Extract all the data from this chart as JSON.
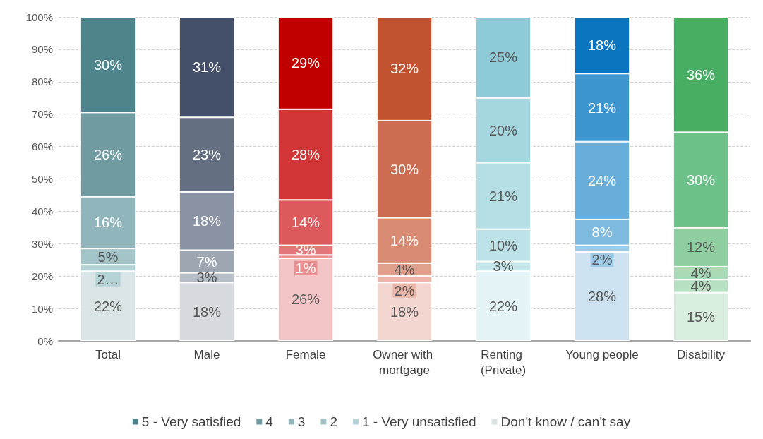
{
  "chart_data": {
    "type": "bar",
    "stacked": true,
    "categories": [
      "Total",
      "Male",
      "Female",
      "Owner with mortgage",
      "Renting (Private)",
      "Young people",
      "Disability"
    ],
    "series": [
      {
        "name": "Don't know / can't say",
        "color": "#d9e3e5",
        "colors": [
          "#d9e5e7",
          "#d7dbe0",
          "#f2c4c6",
          "#f3d6cf",
          "#e5f4f6",
          "#cce2f1",
          "#d9eede"
        ],
        "values": [
          21.5,
          18,
          25.5,
          18,
          21.5,
          27.5,
          14.9
        ],
        "value_labels": [
          "22%",
          "18%",
          "26%",
          "18%",
          "22%",
          "28%",
          "15%"
        ]
      },
      {
        "name": "1 - Very unsatisfied",
        "color": "#b5d2d6",
        "colors": [
          "#b5d2d6",
          "#b6bfc8",
          "#ea8f90",
          "#e9b6a8",
          "#c6e6ea",
          "#9ccbe8",
          "#b7dfc2"
        ],
        "values": [
          2,
          3,
          1,
          2,
          3,
          2,
          4
        ],
        "value_labels": [
          "2…",
          "3%",
          "1%",
          "2%",
          "3%",
          "2%",
          "4%"
        ]
      },
      {
        "name": "2",
        "color": "#a3c4c9",
        "colors": [
          "#a3c4c9",
          "#9ea6b1",
          "#e27779",
          "#dfa08d",
          "#bde3e8",
          "#7fbbe0",
          "#a9d9b7"
        ],
        "values": [
          5,
          7,
          3,
          4,
          10,
          8,
          4
        ],
        "value_labels": [
          "5%",
          "7%",
          "3%",
          "4%",
          "10%",
          "8%",
          "4%"
        ]
      },
      {
        "name": "3",
        "color": "#90b5ba",
        "colors": [
          "#90b5ba",
          "#8a93a3",
          "#dd5a5c",
          "#d88a72",
          "#b5dee5",
          "#67aedc",
          "#8ecea0"
        ],
        "values": [
          16,
          18,
          14,
          14,
          20.5,
          24,
          12
        ],
        "value_labels": [
          "16%",
          "18%",
          "14%",
          "14%",
          "21%",
          "24%",
          "12%"
        ]
      },
      {
        "name": "4",
        "color": "#6f9ba1",
        "colors": [
          "#6f9ba1",
          "#646f82",
          "#d13536",
          "#cc6d52",
          "#a5d7e0",
          "#3d96d0",
          "#6cc189"
        ],
        "values": [
          26,
          23,
          28,
          30,
          20,
          21,
          29.5
        ],
        "value_labels": [
          "26%",
          "23%",
          "28%",
          "30%",
          "20%",
          "21%",
          "30%"
        ]
      },
      {
        "name": "5 - Very satisfied",
        "color": "#4e848c",
        "colors": [
          "#4e848c",
          "#44506a",
          "#c00000",
          "#c0522f",
          "#8ecbd7",
          "#0b74bf",
          "#48ae64"
        ],
        "values": [
          29.5,
          31,
          28.5,
          32,
          25,
          17.5,
          35.6
        ],
        "value_labels": [
          "30%",
          "31%",
          "29%",
          "32%",
          "25%",
          "18%",
          "36%"
        ]
      }
    ],
    "ylim": [
      0,
      100
    ],
    "yticks": [
      {
        "value": 0,
        "label": "0%"
      },
      {
        "value": 10,
        "label": "10%"
      },
      {
        "value": 20,
        "label": "20%"
      },
      {
        "value": 30,
        "label": "30%"
      },
      {
        "value": 40,
        "label": "40%"
      },
      {
        "value": 50,
        "label": "50%"
      },
      {
        "value": 60,
        "label": "60%"
      },
      {
        "value": 70,
        "label": "70%"
      },
      {
        "value": 80,
        "label": "80%"
      },
      {
        "value": 90,
        "label": "90%"
      },
      {
        "value": 100,
        "label": "100%"
      }
    ],
    "grid": "y",
    "legend": "bottom"
  }
}
